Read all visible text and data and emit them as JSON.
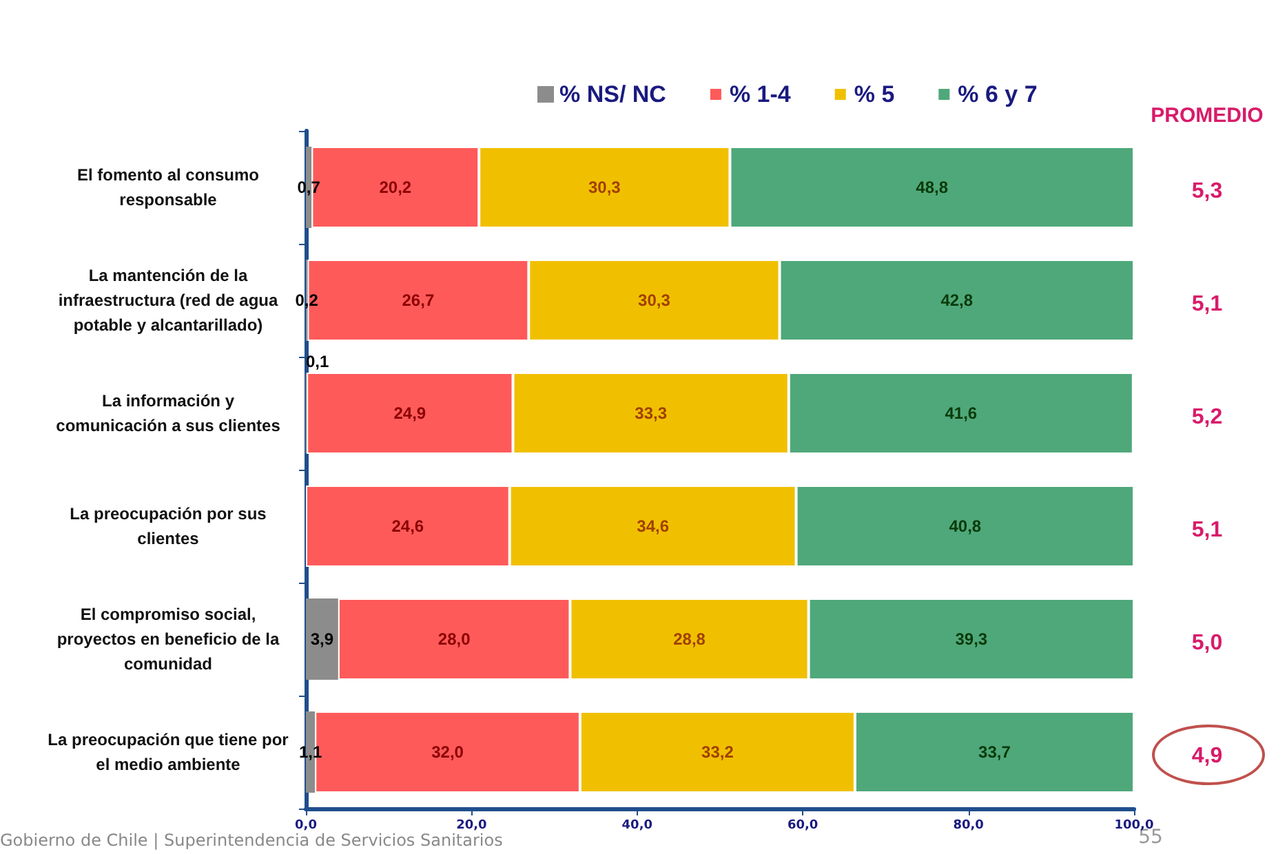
{
  "chart_data": {
    "type": "bar",
    "orientation": "horizontal",
    "stacked": true,
    "legend": "top",
    "grid": false,
    "categories": [
      "El fomento al consumo\nresponsable",
      "La mantención de la\ninfraestructura (red de agua\npotable y alcantarillado)",
      "La información y\ncomunicación a sus clientes",
      "La preocupación por sus\nclientes",
      "El compromiso social,\nproyectos en beneficio de la\ncomunidad",
      "La preocupación que tiene por\nel medio ambiente"
    ],
    "series": [
      {
        "name": "% NS/ NC",
        "color": "#8c8c8c",
        "values": [
          0.7,
          0.2,
          0.1,
          null,
          3.9,
          1.1
        ],
        "value_labels": [
          "0,7",
          "0,2",
          "0,1",
          null,
          "3,9",
          "1,1"
        ]
      },
      {
        "name": "% 1-4",
        "color": "#ff5a5a",
        "values": [
          20.2,
          26.7,
          24.9,
          24.6,
          28.0,
          32.0
        ],
        "value_labels": [
          "20,2",
          "26,7",
          "24,9",
          "24,6",
          "28,0",
          "32,0"
        ]
      },
      {
        "name": "% 5",
        "color": "#f0c000",
        "values": [
          30.3,
          30.3,
          33.3,
          34.6,
          28.8,
          33.2
        ],
        "value_labels": [
          "30,3",
          "30,3",
          "33,3",
          "34,6",
          "28,8",
          "33,2"
        ]
      },
      {
        "name": "% 6 y 7",
        "color": "#4fa87a",
        "values": [
          48.8,
          42.8,
          41.6,
          40.8,
          39.3,
          33.7
        ],
        "value_labels": [
          "48,8",
          "42,8",
          "41,6",
          "40,8",
          "39,3",
          "33,7"
        ]
      }
    ],
    "xlim": [
      0,
      100
    ],
    "xticks": [
      {
        "value": 0,
        "label": "0,0"
      },
      {
        "value": 20,
        "label": "20,0"
      },
      {
        "value": 40,
        "label": "40,0"
      },
      {
        "value": 60,
        "label": "60,0"
      },
      {
        "value": 80,
        "label": "80,0"
      },
      {
        "value": 100,
        "label": "100,0"
      }
    ],
    "annotations": [
      "PROMEDIO",
      "5,3",
      "5,1",
      "5,2",
      "5,1",
      "5,0",
      "4,9",
      "Gobierno de Chile | Superintendencia de Servicios Sanitarios",
      "55"
    ]
  }
}
